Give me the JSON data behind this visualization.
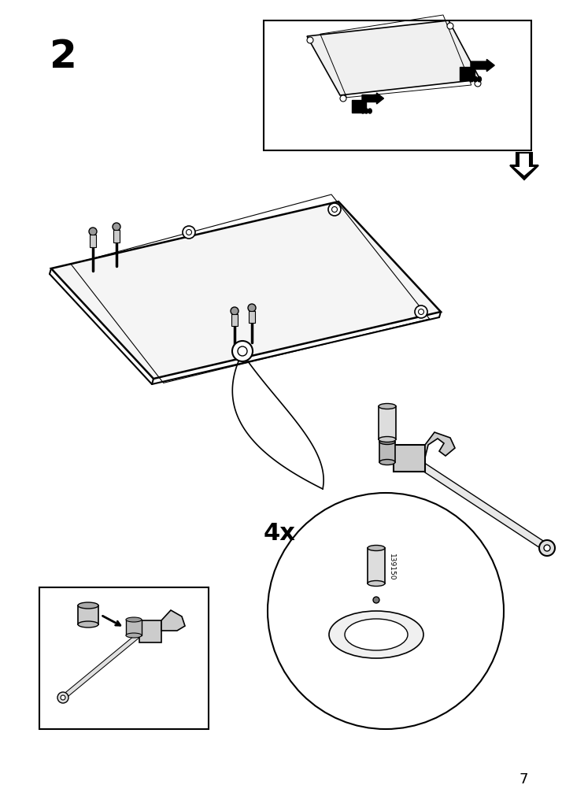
{
  "bg_color": "#ffffff",
  "page_number": "7",
  "step_number": "2",
  "quantity_label": "4x",
  "part_number": "139150",
  "title_fontsize": 36,
  "page_num_fontsize": 13,
  "qty_fontsize": 22
}
